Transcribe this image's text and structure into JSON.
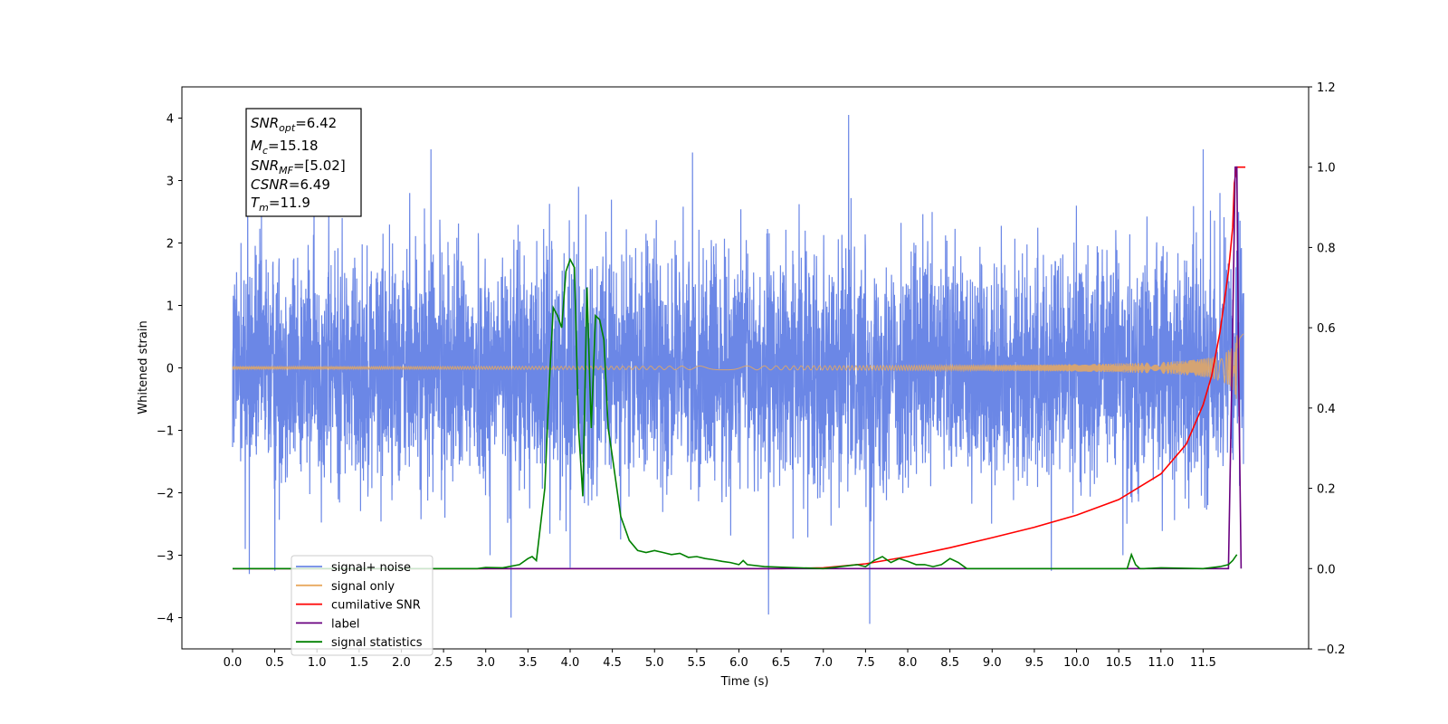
{
  "chart_data": {
    "type": "line",
    "xlabel": "Time (s)",
    "ylabel": "Whitened strain",
    "xlim": [
      -0.6,
      12.75
    ],
    "ylim": [
      -4.5,
      4.5
    ],
    "y2lim": [
      -0.2,
      1.2
    ],
    "xticks": [
      "0.0",
      "0.5",
      "1.0",
      "1.5",
      "2.0",
      "2.5",
      "3.0",
      "3.5",
      "4.0",
      "4.5",
      "5.0",
      "5.5",
      "6.0",
      "6.5",
      "7.0",
      "7.5",
      "8.0",
      "8.5",
      "9.0",
      "9.5",
      "10.0",
      "10.5",
      "11.0",
      "11.5"
    ],
    "yticks": [
      "4",
      "3",
      "2",
      "1",
      "0",
      "−1",
      "−2",
      "−3",
      "−4"
    ],
    "y2ticks": [
      "1.2",
      "1.0",
      "0.8",
      "0.6",
      "0.4",
      "0.2",
      "0.0",
      "−0.2"
    ],
    "legend_position": "lower-left",
    "grid": false,
    "annotation": [
      {
        "base": "SNR",
        "sub": "opt",
        "value": "=6.42"
      },
      {
        "base": "M",
        "sub": "c",
        "value": "=15.18"
      },
      {
        "base": "SNR",
        "sub": "MF",
        "value": "=[5.02]"
      },
      {
        "base": "CSNR",
        "sub": "",
        "value": "=6.49"
      },
      {
        "base": "T",
        "sub": "m",
        "value": "=11.9"
      }
    ],
    "series": [
      {
        "name": "signal+ noise",
        "color": "#6b87e6",
        "axis": "left",
        "kind": "noise",
        "amplitude": 1.0,
        "x_range": [
          0.0,
          11.98
        ],
        "peaks": [
          [
            0.03,
            1.1
          ],
          [
            0.1,
            2.0
          ],
          [
            0.15,
            -2.9
          ],
          [
            0.18,
            3.05
          ],
          [
            0.2,
            -3.3
          ],
          [
            0.5,
            -3.25
          ],
          [
            1.3,
            2.4
          ],
          [
            2.1,
            2.8
          ],
          [
            2.35,
            3.5
          ],
          [
            3.05,
            -3.0
          ],
          [
            3.3,
            -4.0
          ],
          [
            4.0,
            -3.2
          ],
          [
            4.1,
            2.9
          ],
          [
            5.45,
            3.45
          ],
          [
            6.35,
            -3.95
          ],
          [
            7.3,
            4.05
          ],
          [
            7.55,
            -4.1
          ],
          [
            7.6,
            -3.1
          ],
          [
            9.7,
            -3.25
          ],
          [
            10.55,
            -3.0
          ],
          [
            11.5,
            3.5
          ],
          [
            11.7,
            2.8
          ],
          [
            11.95,
            1.9
          ]
        ]
      },
      {
        "name": "signal only",
        "color": "#e8a95e",
        "axis": "left",
        "kind": "chirp",
        "x_range": [
          0.0,
          11.98
        ],
        "max_amplitude": 0.55,
        "merger_time": 11.9
      },
      {
        "name": "cumilative SNR",
        "color": "#ff0000",
        "axis": "right",
        "x": [
          0.0,
          6.5,
          7.0,
          7.5,
          8.0,
          8.5,
          9.0,
          9.5,
          10.0,
          10.5,
          11.0,
          11.3,
          11.5,
          11.6,
          11.7,
          11.8,
          11.85,
          11.87,
          11.9,
          12.0
        ],
        "y": [
          0.0,
          0.0,
          0.002,
          0.012,
          0.03,
          0.052,
          0.077,
          0.103,
          0.133,
          0.172,
          0.236,
          0.31,
          0.408,
          0.48,
          0.59,
          0.74,
          0.85,
          0.96,
          1.0,
          1.0
        ]
      },
      {
        "name": "label",
        "color": "#6a0080",
        "axis": "right",
        "x": [
          0.0,
          11.8,
          11.85,
          11.88,
          11.9,
          11.92,
          11.95
        ],
        "y": [
          0.0,
          0.0,
          0.6,
          1.0,
          1.0,
          0.5,
          0.0
        ]
      },
      {
        "name": "signal statistics",
        "color": "#008000",
        "axis": "right",
        "x": [
          0.0,
          2.9,
          3.0,
          3.2,
          3.4,
          3.5,
          3.55,
          3.6,
          3.7,
          3.75,
          3.8,
          3.85,
          3.9,
          3.95,
          4.0,
          4.05,
          4.1,
          4.15,
          4.2,
          4.25,
          4.3,
          4.35,
          4.4,
          4.45,
          4.5,
          4.6,
          4.7,
          4.8,
          4.9,
          5.0,
          5.1,
          5.2,
          5.3,
          5.4,
          5.5,
          5.6,
          5.7,
          5.8,
          5.9,
          6.0,
          6.05,
          6.1,
          6.3,
          7.0,
          7.4,
          7.5,
          7.6,
          7.7,
          7.8,
          7.9,
          8.0,
          8.1,
          8.2,
          8.3,
          8.4,
          8.5,
          8.6,
          8.7,
          9.0,
          10.6,
          10.65,
          10.7,
          10.75,
          10.8,
          11.0,
          11.5,
          11.7,
          11.8,
          11.85,
          11.9
        ],
        "y": [
          0.0,
          0.0,
          0.003,
          0.002,
          0.01,
          0.025,
          0.03,
          0.02,
          0.2,
          0.45,
          0.65,
          0.63,
          0.6,
          0.74,
          0.77,
          0.75,
          0.35,
          0.18,
          0.7,
          0.35,
          0.63,
          0.62,
          0.57,
          0.35,
          0.28,
          0.13,
          0.07,
          0.045,
          0.04,
          0.045,
          0.04,
          0.035,
          0.038,
          0.028,
          0.03,
          0.025,
          0.022,
          0.018,
          0.015,
          0.01,
          0.02,
          0.01,
          0.005,
          0.0,
          0.01,
          0.005,
          0.02,
          0.03,
          0.015,
          0.025,
          0.018,
          0.01,
          0.01,
          0.005,
          0.01,
          0.025,
          0.015,
          0.0,
          0.0,
          0.0,
          0.035,
          0.01,
          0.0,
          0.0,
          0.002,
          0.0,
          0.005,
          0.01,
          0.02,
          0.035
        ]
      }
    ]
  }
}
